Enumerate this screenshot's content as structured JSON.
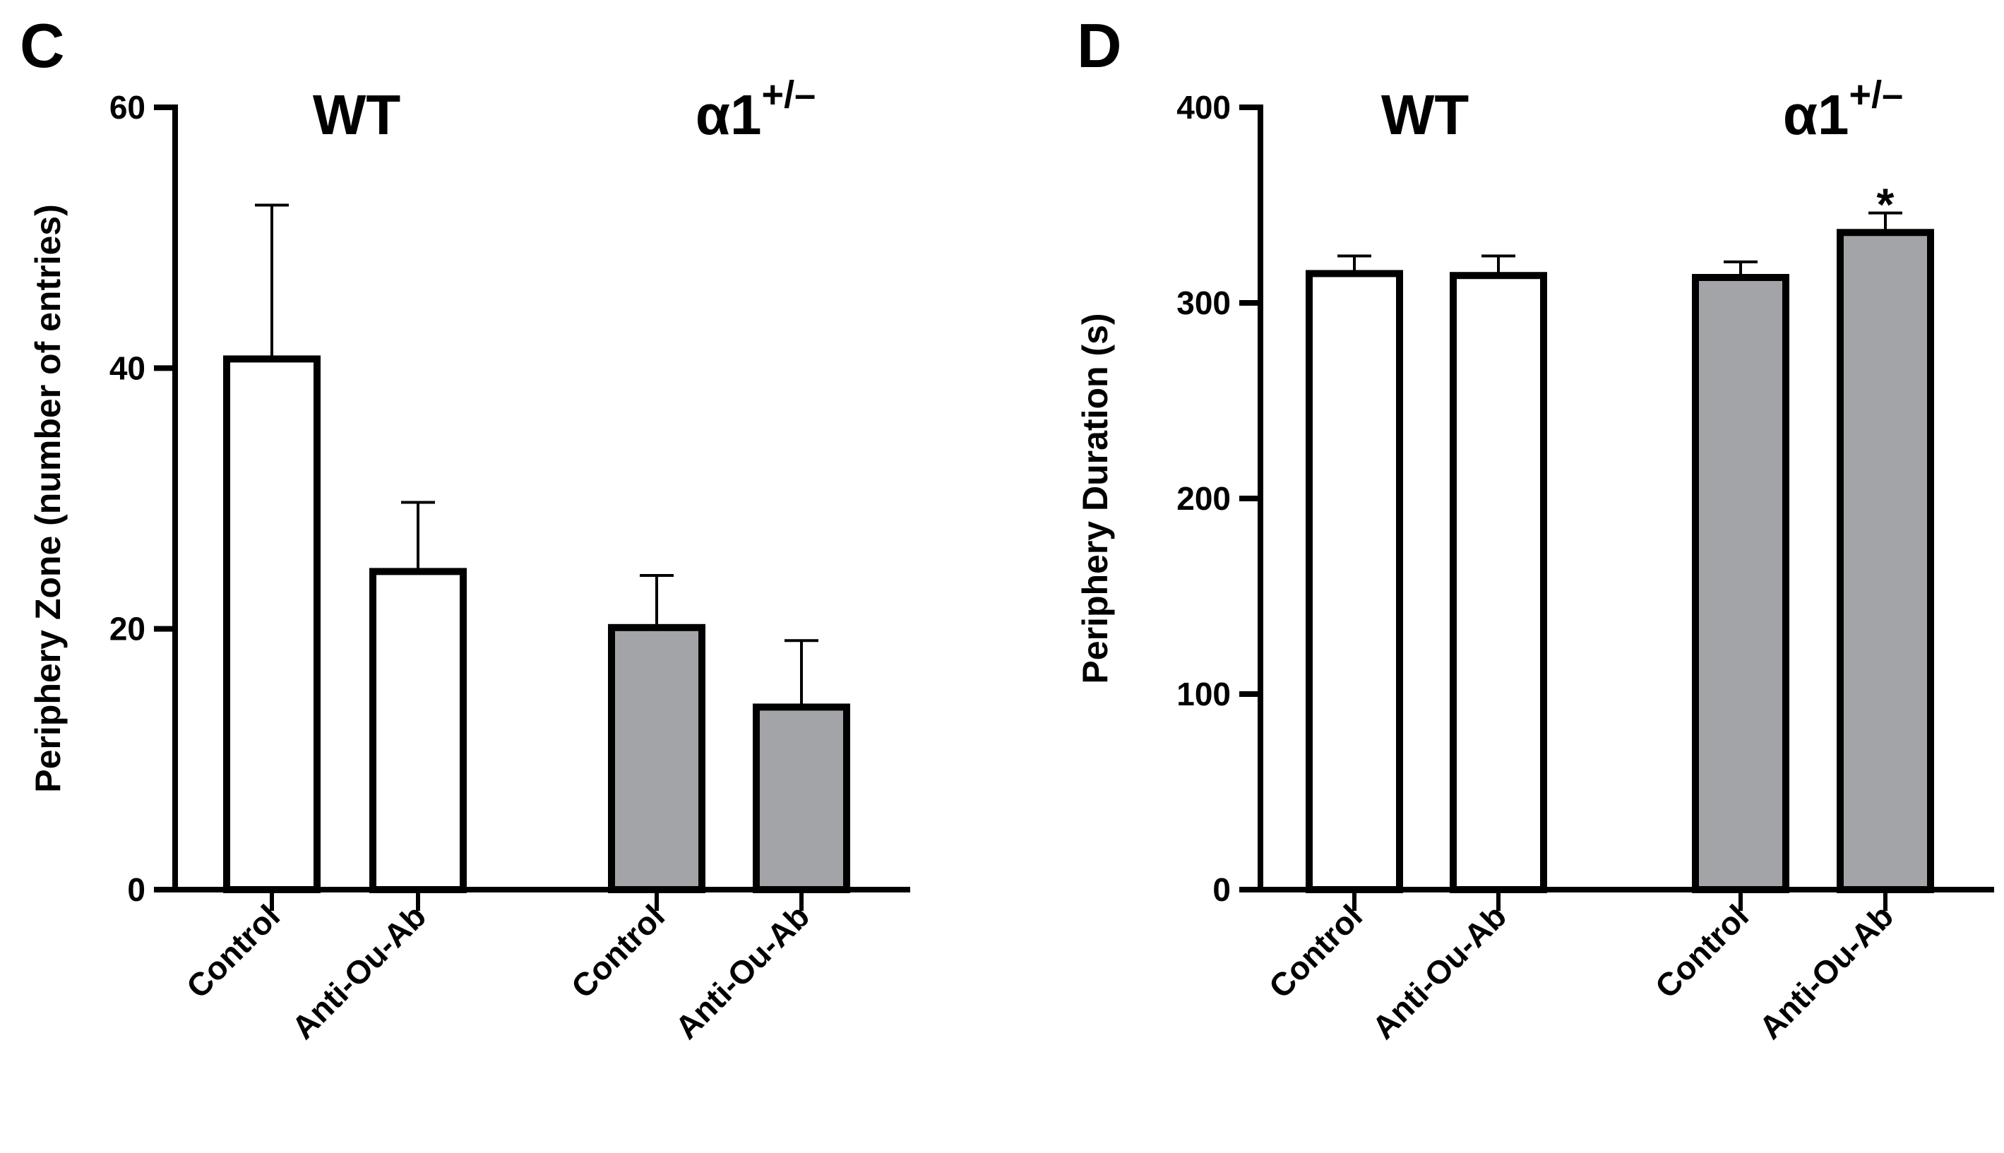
{
  "colors": {
    "wt_fill": "#ffffff",
    "alpha_fill": "#a3a4a7",
    "stroke": "#000000"
  },
  "chart_data": [
    {
      "type": "bar",
      "panel": "C",
      "title": "",
      "xlabel": "",
      "ylabel": "Periphery Zone (number of entries)",
      "ylim": [
        0,
        60
      ],
      "yticks": [
        0,
        20,
        40,
        60
      ],
      "groups": [
        {
          "label": "WT",
          "superscript": ""
        },
        {
          "label": "α1",
          "superscript": "+/–"
        }
      ],
      "categories": [
        "Control",
        "Anti-Ou-Ab",
        "Control",
        "Anti-Ou-Ab"
      ],
      "bars": [
        {
          "group": 0,
          "category": "Control",
          "value": 40.7,
          "error": 11.8,
          "fill": "wt_fill"
        },
        {
          "group": 0,
          "category": "Anti-Ou-Ab",
          "value": 24.4,
          "error": 5.3,
          "fill": "wt_fill"
        },
        {
          "group": 1,
          "category": "Control",
          "value": 20.1,
          "error": 4.0,
          "fill": "alpha_fill"
        },
        {
          "group": 1,
          "category": "Anti-Ou-Ab",
          "value": 14.0,
          "error": 5.1,
          "fill": "alpha_fill"
        }
      ],
      "annotations": []
    },
    {
      "type": "bar",
      "panel": "D",
      "title": "",
      "xlabel": "",
      "ylabel": "Periphery Duration (s)",
      "ylim": [
        0,
        400
      ],
      "yticks": [
        0,
        100,
        200,
        300,
        400
      ],
      "groups": [
        {
          "label": "WT",
          "superscript": ""
        },
        {
          "label": "α1",
          "superscript": "+/–"
        }
      ],
      "categories": [
        "Control",
        "Anti-Ou-Ab",
        "Control",
        "Anti-Ou-Ab"
      ],
      "bars": [
        {
          "group": 0,
          "category": "Control",
          "value": 315,
          "error": 9,
          "fill": "wt_fill"
        },
        {
          "group": 0,
          "category": "Anti-Ou-Ab",
          "value": 314,
          "error": 10,
          "fill": "wt_fill"
        },
        {
          "group": 1,
          "category": "Control",
          "value": 313,
          "error": 8,
          "fill": "alpha_fill"
        },
        {
          "group": 1,
          "category": "Anti-Ou-Ab",
          "value": 336,
          "error": 10,
          "fill": "alpha_fill"
        }
      ],
      "annotations": [
        {
          "bar_index": 3,
          "text": "*"
        }
      ]
    }
  ]
}
